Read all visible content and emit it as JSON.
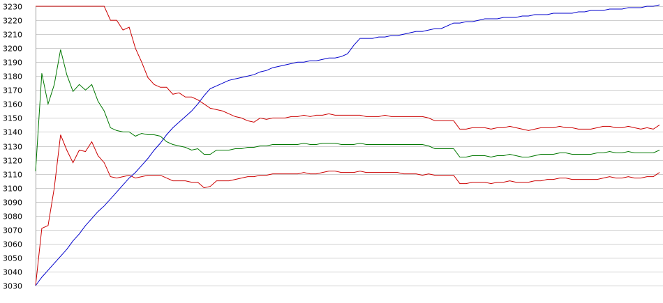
{
  "chart_data": {
    "type": "line",
    "title": "",
    "xlabel": "",
    "ylabel": "",
    "ylim": [
      3030,
      3230
    ],
    "yticks": [
      3030,
      3040,
      3050,
      3060,
      3070,
      3080,
      3090,
      3100,
      3110,
      3120,
      3130,
      3140,
      3150,
      3160,
      3170,
      3180,
      3190,
      3200,
      3210,
      3220,
      3230
    ],
    "grid": "horizontal",
    "legend": "none",
    "x_count": 101,
    "series": [
      {
        "color": "#cc0000",
        "role": "upper-band",
        "values": [
          3230,
          3230,
          3230,
          3230,
          3230,
          3230,
          3230,
          3230,
          3230,
          3230,
          3230,
          3230,
          3220,
          3220,
          3213,
          3215,
          3200,
          3190,
          3179,
          3174,
          3172,
          3172,
          3167,
          3168,
          3165,
          3165,
          3163,
          3160,
          3157,
          3156,
          3155,
          3153,
          3151,
          3150,
          3148,
          3147,
          3150,
          3149,
          3150,
          3150,
          3150,
          3151,
          3151,
          3152,
          3151,
          3152,
          3152,
          3153,
          3152,
          3152,
          3152,
          3152,
          3152,
          3151,
          3151,
          3151,
          3152,
          3151,
          3151,
          3151,
          3151,
          3151,
          3151,
          3150,
          3148,
          3148,
          3148,
          3148,
          3142,
          3142,
          3143,
          3143,
          3143,
          3142,
          3143,
          3143,
          3144,
          3143,
          3142,
          3141,
          3142,
          3143,
          3143,
          3143,
          3144,
          3143,
          3143,
          3142,
          3142,
          3142,
          3143,
          3144,
          3144,
          3143,
          3143,
          3144,
          3143,
          3142,
          3143,
          3142,
          3145
        ]
      },
      {
        "color": "#007700",
        "role": "middle-band",
        "values": [
          3112,
          3182,
          3160,
          3174,
          3199,
          3181,
          3169,
          3174,
          3170,
          3174,
          3162,
          3155,
          3143,
          3141,
          3140,
          3140,
          3137,
          3139,
          3138,
          3138,
          3137,
          3133,
          3131,
          3130,
          3129,
          3127,
          3128,
          3124,
          3124,
          3127,
          3127,
          3127,
          3128,
          3128,
          3129,
          3129,
          3130,
          3130,
          3131,
          3131,
          3131,
          3131,
          3131,
          3132,
          3131,
          3131,
          3132,
          3132,
          3132,
          3131,
          3131,
          3131,
          3132,
          3131,
          3131,
          3131,
          3131,
          3131,
          3131,
          3131,
          3131,
          3131,
          3131,
          3130,
          3128,
          3128,
          3128,
          3128,
          3122,
          3122,
          3123,
          3123,
          3123,
          3122,
          3123,
          3123,
          3124,
          3123,
          3122,
          3122,
          3123,
          3124,
          3124,
          3124,
          3125,
          3125,
          3124,
          3124,
          3124,
          3124,
          3125,
          3125,
          3126,
          3125,
          3125,
          3126,
          3125,
          3125,
          3125,
          3125,
          3127
        ]
      },
      {
        "color": "#cc0000",
        "role": "lower-band",
        "values": [
          3030,
          3071,
          3073,
          3100,
          3138,
          3127,
          3118,
          3127,
          3126,
          3133,
          3123,
          3118,
          3108,
          3107,
          3108,
          3109,
          3107,
          3108,
          3109,
          3109,
          3109,
          3107,
          3105,
          3105,
          3105,
          3104,
          3104,
          3100,
          3101,
          3105,
          3105,
          3105,
          3106,
          3107,
          3108,
          3108,
          3109,
          3109,
          3110,
          3110,
          3110,
          3110,
          3110,
          3111,
          3110,
          3110,
          3111,
          3112,
          3112,
          3111,
          3111,
          3111,
          3112,
          3111,
          3111,
          3111,
          3111,
          3111,
          3111,
          3110,
          3110,
          3110,
          3109,
          3110,
          3109,
          3109,
          3109,
          3109,
          3103,
          3103,
          3104,
          3104,
          3104,
          3103,
          3104,
          3104,
          3105,
          3104,
          3104,
          3104,
          3105,
          3105,
          3106,
          3106,
          3107,
          3107,
          3106,
          3106,
          3106,
          3106,
          3106,
          3107,
          3108,
          3107,
          3107,
          3108,
          3107,
          3107,
          3108,
          3108,
          3111
        ]
      },
      {
        "color": "#0000cc",
        "role": "rising-line",
        "values": [
          3030,
          3036,
          3041,
          3046,
          3051,
          3056,
          3062,
          3067,
          3073,
          3078,
          3083,
          3087,
          3092,
          3097,
          3102,
          3107,
          3111,
          3116,
          3121,
          3127,
          3132,
          3138,
          3143,
          3147,
          3151,
          3155,
          3160,
          3166,
          3171,
          3173,
          3175,
          3177,
          3178,
          3179,
          3180,
          3181,
          3183,
          3184,
          3186,
          3187,
          3188,
          3189,
          3190,
          3190,
          3191,
          3191,
          3192,
          3193,
          3193,
          3194,
          3196,
          3202,
          3207,
          3207,
          3207,
          3208,
          3208,
          3209,
          3209,
          3210,
          3211,
          3212,
          3212,
          3213,
          3214,
          3214,
          3216,
          3218,
          3218,
          3219,
          3219,
          3220,
          3221,
          3221,
          3221,
          3222,
          3222,
          3222,
          3223,
          3223,
          3224,
          3224,
          3224,
          3225,
          3225,
          3225,
          3225,
          3226,
          3226,
          3227,
          3227,
          3227,
          3228,
          3228,
          3228,
          3229,
          3229,
          3229,
          3230,
          3230,
          3231
        ]
      }
    ]
  }
}
